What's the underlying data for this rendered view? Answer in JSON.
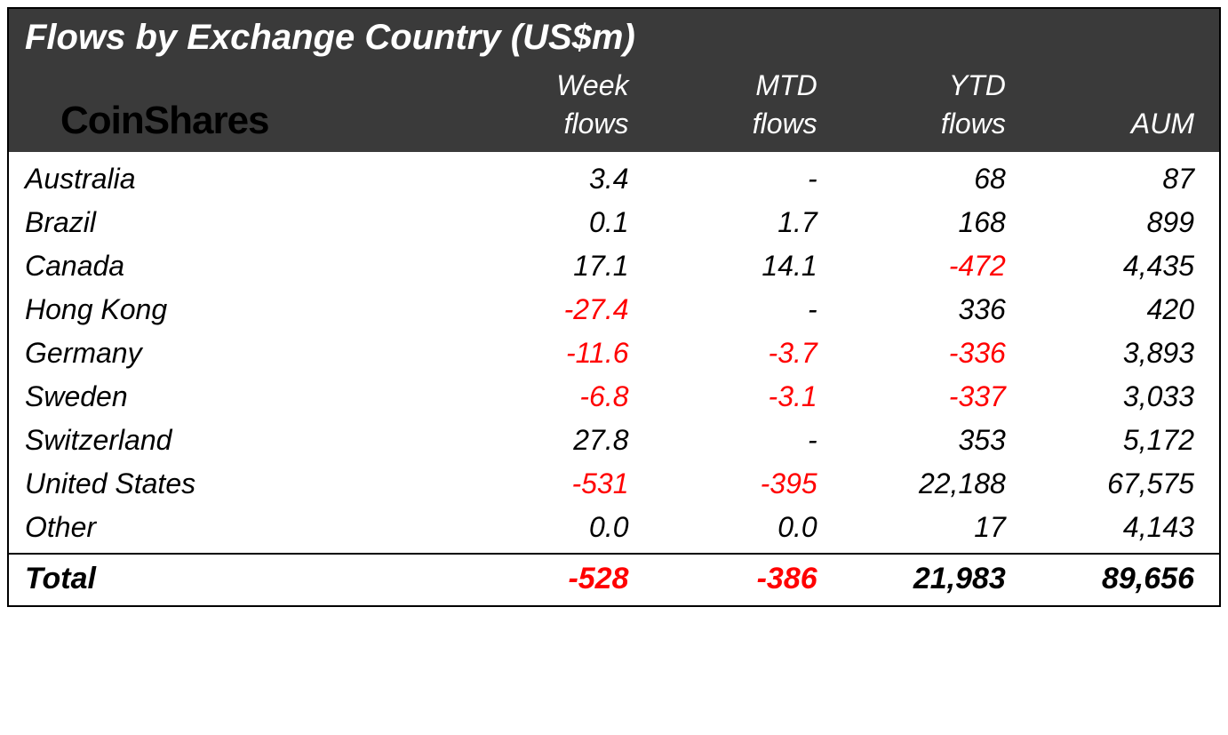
{
  "table": {
    "title": "Flows by Exchange Country (US$m)",
    "brand": "CoinShares",
    "type": "table",
    "colors": {
      "header_bg": "#3a3a3a",
      "header_text": "#ffffff",
      "body_bg": "#ffffff",
      "body_text": "#000000",
      "negative_text": "#ff0000",
      "brand_text": "#000000",
      "border": "#000000"
    },
    "typography": {
      "title_fontsize": 40,
      "title_weight": "bold",
      "title_style": "italic",
      "brand_fontsize": 44,
      "brand_weight": 600,
      "header_fontsize": 32,
      "header_style": "italic",
      "body_fontsize": 32,
      "body_style": "italic",
      "total_fontsize": 34,
      "total_weight": "bold",
      "total_style": "italic"
    },
    "layout": {
      "column_widths_pct": [
        36,
        16,
        16,
        16,
        16
      ],
      "numeric_align": "right",
      "country_align": "left"
    },
    "columns": [
      {
        "id": "country",
        "label_line1": "",
        "label_line2": ""
      },
      {
        "id": "week",
        "label_line1": "Week",
        "label_line2": "flows"
      },
      {
        "id": "mtd",
        "label_line1": "MTD",
        "label_line2": "flows"
      },
      {
        "id": "ytd",
        "label_line1": "YTD",
        "label_line2": "flows"
      },
      {
        "id": "aum",
        "label_line1": "",
        "label_line2": "AUM"
      }
    ],
    "rows": [
      {
        "country": "Australia",
        "week": "3.4",
        "week_neg": false,
        "mtd": "-",
        "mtd_neg": false,
        "ytd": "68",
        "ytd_neg": false,
        "aum": "87"
      },
      {
        "country": "Brazil",
        "week": "0.1",
        "week_neg": false,
        "mtd": "1.7",
        "mtd_neg": false,
        "ytd": "168",
        "ytd_neg": false,
        "aum": "899"
      },
      {
        "country": "Canada",
        "week": "17.1",
        "week_neg": false,
        "mtd": "14.1",
        "mtd_neg": false,
        "ytd": "-472",
        "ytd_neg": true,
        "aum": "4,435"
      },
      {
        "country": "Hong Kong",
        "week": "-27.4",
        "week_neg": true,
        "mtd": "-",
        "mtd_neg": false,
        "ytd": "336",
        "ytd_neg": false,
        "aum": "420"
      },
      {
        "country": "Germany",
        "week": "-11.6",
        "week_neg": true,
        "mtd": "-3.7",
        "mtd_neg": true,
        "ytd": "-336",
        "ytd_neg": true,
        "aum": "3,893"
      },
      {
        "country": "Sweden",
        "week": "-6.8",
        "week_neg": true,
        "mtd": "-3.1",
        "mtd_neg": true,
        "ytd": "-337",
        "ytd_neg": true,
        "aum": "3,033"
      },
      {
        "country": "Switzerland",
        "week": "27.8",
        "week_neg": false,
        "mtd": "-",
        "mtd_neg": false,
        "ytd": "353",
        "ytd_neg": false,
        "aum": "5,172"
      },
      {
        "country": "United States",
        "week": "-531",
        "week_neg": true,
        "mtd": "-395",
        "mtd_neg": true,
        "ytd": "22,188",
        "ytd_neg": false,
        "aum": "67,575"
      },
      {
        "country": "Other",
        "week": "0.0",
        "week_neg": false,
        "mtd": "0.0",
        "mtd_neg": false,
        "ytd": "17",
        "ytd_neg": false,
        "aum": "4,143"
      }
    ],
    "total": {
      "label": "Total",
      "week": "-528",
      "week_neg": true,
      "mtd": "-386",
      "mtd_neg": true,
      "ytd": "21,983",
      "ytd_neg": false,
      "aum": "89,656"
    }
  }
}
